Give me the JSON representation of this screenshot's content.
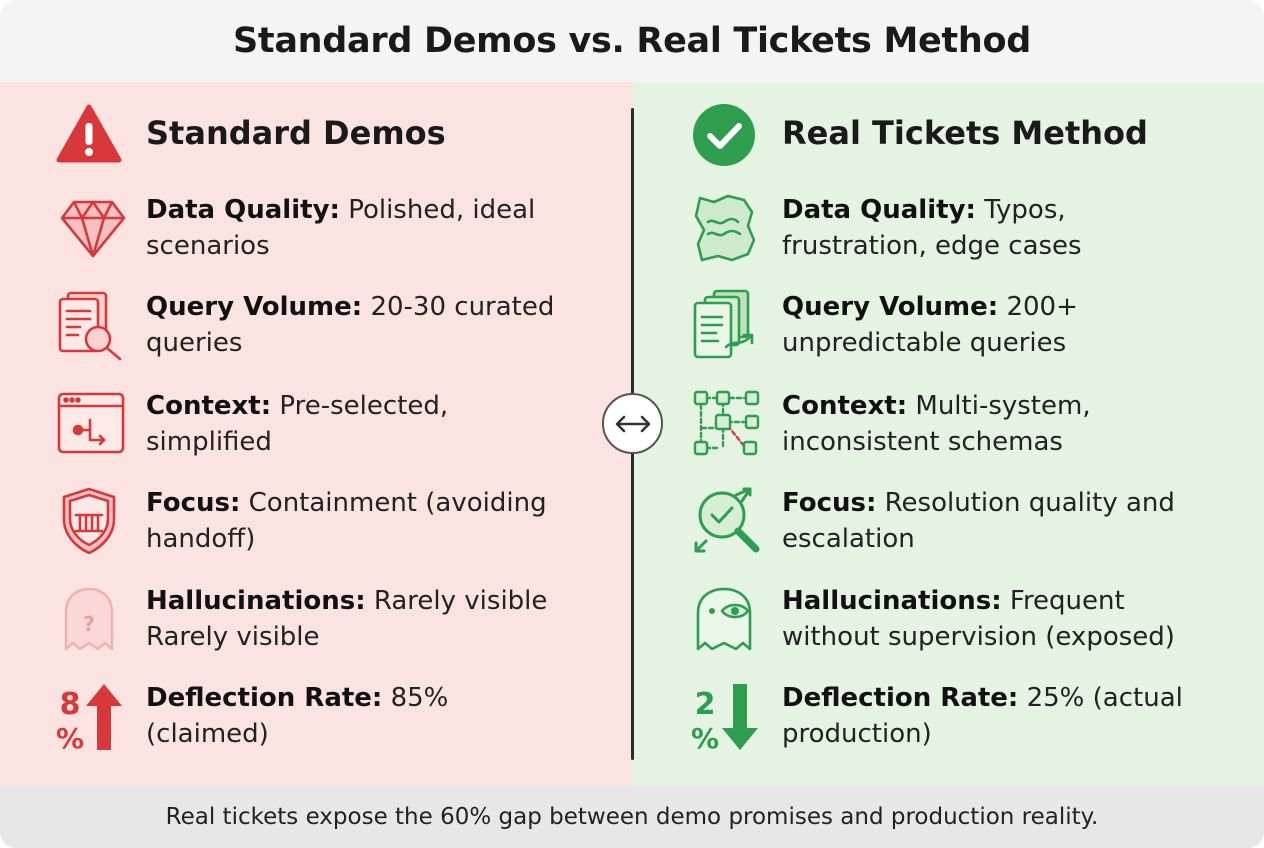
{
  "title": "Standard Demos vs. Real Tickets Method",
  "left": {
    "heading": "Standard Demos",
    "heading_icon": "warning-triangle-icon",
    "accent": "#d9383a",
    "items": [
      {
        "label": "Data Quality:",
        "text": "Polished, ideal scenarios",
        "icon": "diamond-icon"
      },
      {
        "label": "Query Volume:",
        "text": "20-30 curated queries",
        "icon": "document-search-icon"
      },
      {
        "label": "Context:",
        "text": "Pre-selected, simplified",
        "icon": "browser-flow-icon"
      },
      {
        "label": "Focus:",
        "text": "Containment (avoiding handoff)",
        "icon": "shield-barrier-icon"
      },
      {
        "label": "Hallucinations:",
        "text": "Rarely visible Rarely visible",
        "icon": "faded-ghost-icon"
      },
      {
        "label": "Deflection Rate:",
        "text": "85% (claimed)",
        "icon": "percent-arrow-up-icon",
        "icon_digit": "8",
        "icon_percent": "%"
      }
    ]
  },
  "right": {
    "heading": "Real Tickets Method",
    "heading_icon": "check-circle-icon",
    "accent": "#2e9e4e",
    "items": [
      {
        "label": "Data Quality:",
        "text": "Typos, frustration, edge cases",
        "icon": "crumpled-paper-icon"
      },
      {
        "label": "Query Volume:",
        "text": "200+ unpredictable queries",
        "icon": "document-stack-icon"
      },
      {
        "label": "Context:",
        "text": "Multi-system, inconsistent schemas",
        "icon": "network-nodes-icon"
      },
      {
        "label": "Focus:",
        "text": "Resolution quality and escalation",
        "icon": "magnifier-check-icon"
      },
      {
        "label": "Hallucinations:",
        "text": "Frequent without supervision (exposed)",
        "icon": "ghost-eye-icon"
      },
      {
        "label": "Deflection Rate:",
        "text": "25% (actual production)",
        "icon": "percent-arrow-down-icon",
        "icon_digit": "2",
        "icon_percent": "%"
      }
    ]
  },
  "center_icon": "swap-arrows-icon",
  "footer": "Real tickets expose the 60% gap between demo promises and production reality."
}
